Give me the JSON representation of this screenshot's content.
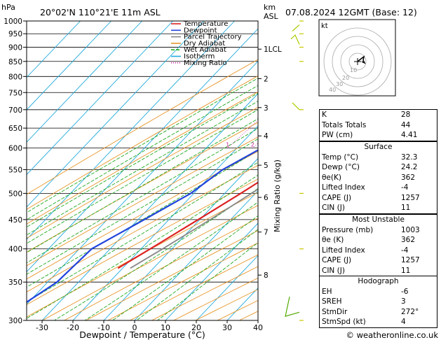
{
  "header": {
    "units_p": "hPa",
    "location": "20°02'N  110°21'E  11m  ASL",
    "units_km": "km",
    "units_asl": "ASL",
    "datetime": "07.08.2024  12GMT  (Base: 12)"
  },
  "legend": [
    {
      "label": "Temperature",
      "color": "#dd2222"
    },
    {
      "label": "Dewpoint",
      "color": "#2244dd"
    },
    {
      "label": "Parcel Trajectory",
      "color": "#888888"
    },
    {
      "label": "Dry Adiabat",
      "color": "#e8962a"
    },
    {
      "label": "Wet Adiabat",
      "color": "#22aa22"
    },
    {
      "label": "Isotherm",
      "color": "#22aadd"
    },
    {
      "label": "Mixing Ratio",
      "color": "#cc2299"
    }
  ],
  "chart_data": {
    "type": "line",
    "title": "Skew-T log-P sounding",
    "xlabel": "Dewpoint / Temperature (°C)",
    "ylabel": "hPa",
    "y2label": "Mixing Ratio (g/kg)",
    "xlim": [
      -35,
      40
    ],
    "ylim": [
      1000,
      300
    ],
    "x_ticks": [
      "-30",
      "-20",
      "-10",
      "0",
      "10",
      "20",
      "30",
      "40"
    ],
    "p_ticks": [
      "300",
      "350",
      "400",
      "450",
      "500",
      "550",
      "600",
      "650",
      "700",
      "750",
      "800",
      "850",
      "900",
      "950",
      "1000"
    ],
    "km_ticks": [
      {
        "label": "8",
        "p": 360
      },
      {
        "label": "7",
        "p": 428
      },
      {
        "label": "6",
        "p": 492
      },
      {
        "label": "5",
        "p": 560
      },
      {
        "label": "4",
        "p": 630
      },
      {
        "label": "3",
        "p": 706
      },
      {
        "label": "2",
        "p": 793
      },
      {
        "label": "1LCL",
        "p": 893
      }
    ],
    "mixing_ratio_labels": [
      "1",
      "2",
      "3",
      "4",
      "6",
      "8",
      "10",
      "15",
      "20",
      "25"
    ],
    "series": [
      {
        "name": "Temperature",
        "p": [
          1000,
          950,
          900,
          850,
          800,
          750,
          700,
          650,
          600,
          550,
          500,
          450,
          400,
          370
        ],
        "t": [
          32.3,
          28.5,
          24.5,
          21.0,
          18.5,
          15.8,
          12.5,
          8.8,
          4.5,
          0.0,
          -4.8,
          -10.5,
          -17.0,
          -21.5
        ]
      },
      {
        "name": "Dewpoint",
        "p": [
          1000,
          950,
          900,
          850,
          800,
          750,
          700,
          650,
          600,
          550,
          500,
          450,
          400,
          350,
          300
        ],
        "t": [
          24.2,
          22.5,
          21.0,
          19.0,
          12.0,
          3.0,
          -1.0,
          -6.0,
          -12.0,
          -18.0,
          -21.0,
          -28.0,
          -36.0,
          -37.0,
          -44.0
        ]
      },
      {
        "name": "Parcel Trajectory",
        "p": [
          1000,
          950,
          893,
          850,
          800,
          750,
          700,
          650,
          600,
          550,
          500,
          450,
          400,
          370
        ],
        "t": [
          32.3,
          27.6,
          23.6,
          21.7,
          19.3,
          16.7,
          13.8,
          10.7,
          7.2,
          3.2,
          -1.3,
          -6.6,
          -13.0,
          -17.5
        ]
      }
    ],
    "hodograph": {
      "rings_kt": [
        "10",
        "20",
        "30",
        "40"
      ],
      "label": "kt"
    }
  },
  "indices": [
    {
      "label": "K",
      "value": "28"
    },
    {
      "label": "Totals Totals",
      "value": "44"
    },
    {
      "label": "PW (cm)",
      "value": "4.41"
    }
  ],
  "surface": {
    "title": "Surface",
    "rows": [
      {
        "label": "Temp (°C)",
        "value": "32.3"
      },
      {
        "label": "Dewp (°C)",
        "value": "24.2"
      },
      {
        "label": "θe(K)",
        "value": "362"
      },
      {
        "label": "Lifted Index",
        "value": "-4"
      },
      {
        "label": "CAPE (J)",
        "value": "1257"
      },
      {
        "label": "CIN (J)",
        "value": "11"
      }
    ]
  },
  "most_unstable": {
    "title": "Most Unstable",
    "rows": [
      {
        "label": "Pressure (mb)",
        "value": "1003"
      },
      {
        "label": "θe (K)",
        "value": "362"
      },
      {
        "label": "Lifted Index",
        "value": "-4"
      },
      {
        "label": "CAPE (J)",
        "value": "1257"
      },
      {
        "label": "CIN (J)",
        "value": "11"
      }
    ]
  },
  "hodograph_params": {
    "title": "Hodograph",
    "rows": [
      {
        "label": "EH",
        "value": "-6"
      },
      {
        "label": "SREH",
        "value": "3"
      },
      {
        "label": "StmDir",
        "value": "272°"
      },
      {
        "label": "StmSpd (kt)",
        "value": "4"
      }
    ]
  },
  "footer": {
    "copyright": "© weatheronline.co.uk"
  }
}
